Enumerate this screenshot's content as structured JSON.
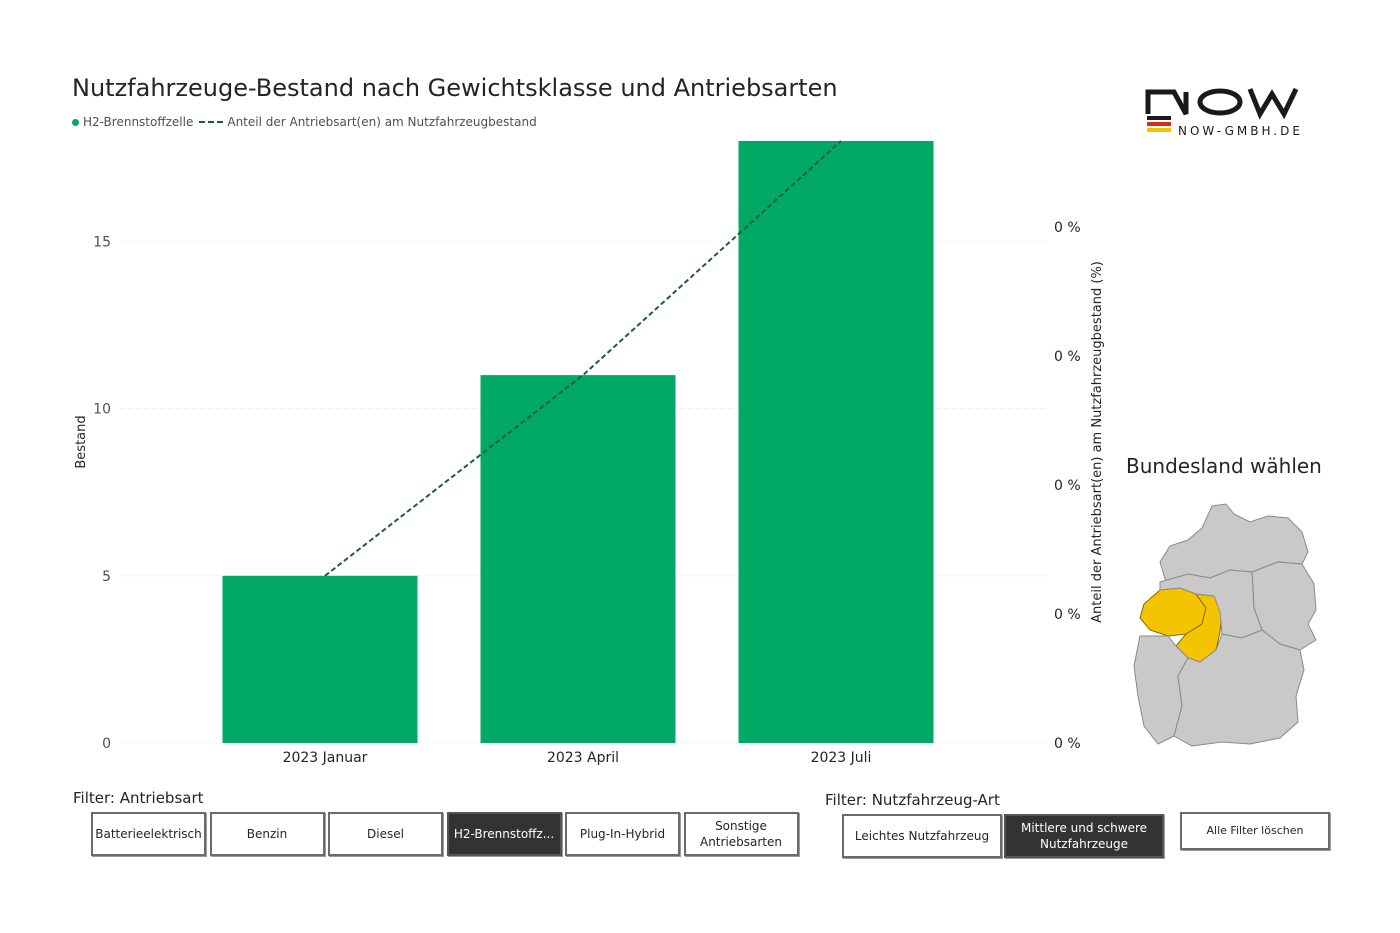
{
  "title": "Nutzfahrzeuge-Bestand nach Gewichtsklasse und Antriebsarten",
  "legend": {
    "bar_label": "H2-Brennstoffzelle",
    "line_label": "Anteil der Antriebsart(en) am Nutzfahrzeugbestand"
  },
  "colors": {
    "bar": "#02a865",
    "line": "#1a5e3a",
    "active_button": "#333333",
    "map_selected": "#f5c400",
    "map_default": "#c9c9c9"
  },
  "chart_data": {
    "type": "bar",
    "categories": [
      "2023 Januar",
      "2023 April",
      "2023 Juli"
    ],
    "series": [
      {
        "name": "H2-Brennstoffzelle",
        "values": [
          5,
          11,
          18
        ]
      },
      {
        "name": "Anteil der Antriebsart(en) am Nutzfahrzeugbestand",
        "type": "line",
        "style": "dashed",
        "axis": "secondary"
      }
    ],
    "ylabel": "Bestand",
    "ylim": [
      0,
      18
    ],
    "yticks": [
      "0",
      "5",
      "10",
      "15"
    ],
    "y2label": "Anteil der Antriebsart(en) am Nutzfahrzeugbestand (%)",
    "y2ticks": [
      "0 %",
      "0 %",
      "0 %",
      "0 %",
      "0 %"
    ],
    "grid": true,
    "legend_position": "top-left"
  },
  "logo": {
    "text": "NOW-GMBH.DE"
  },
  "bundesland": {
    "title": "Bundesland wählen"
  },
  "filters": {
    "antriebsart": {
      "label": "Filter: Antriebsart",
      "buttons": [
        "Batterieelektrisch",
        "Benzin",
        "Diesel",
        "H2-Brennstoffz...",
        "Plug-In-Hybrid",
        "Sonstige\nAntriebsarten"
      ],
      "active": "H2-Brennstoffz..."
    },
    "nutzfahrzeug_art": {
      "label": "Filter: Nutzfahrzeug-Art",
      "buttons": [
        "Leichtes Nutzfahrzeug",
        "Mittlere und schwere\nNutzfahrzeuge"
      ],
      "active": "Mittlere und schwere\nNutzfahrzeuge"
    },
    "clear_label": "Alle Filter löschen"
  }
}
